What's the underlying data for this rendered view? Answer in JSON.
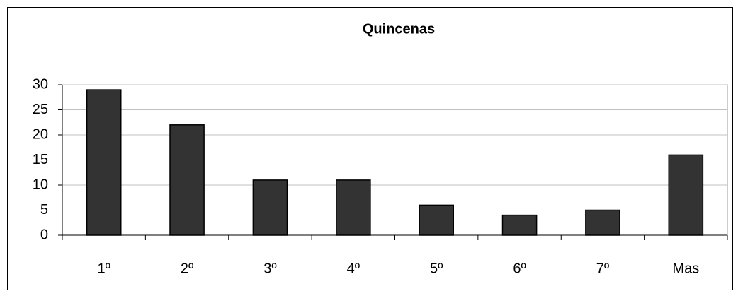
{
  "chart_data": {
    "type": "bar",
    "title": "Quincenas",
    "categories": [
      "1º",
      "2º",
      "3º",
      "4º",
      "5º",
      "6º",
      "7º",
      "Mas"
    ],
    "values": [
      29,
      22,
      11,
      11,
      6,
      4,
      5,
      16
    ],
    "color": "#333333",
    "ylim": [
      0,
      30
    ],
    "yticks": [
      0,
      5,
      10,
      15,
      20,
      25,
      30
    ],
    "grid": true
  }
}
